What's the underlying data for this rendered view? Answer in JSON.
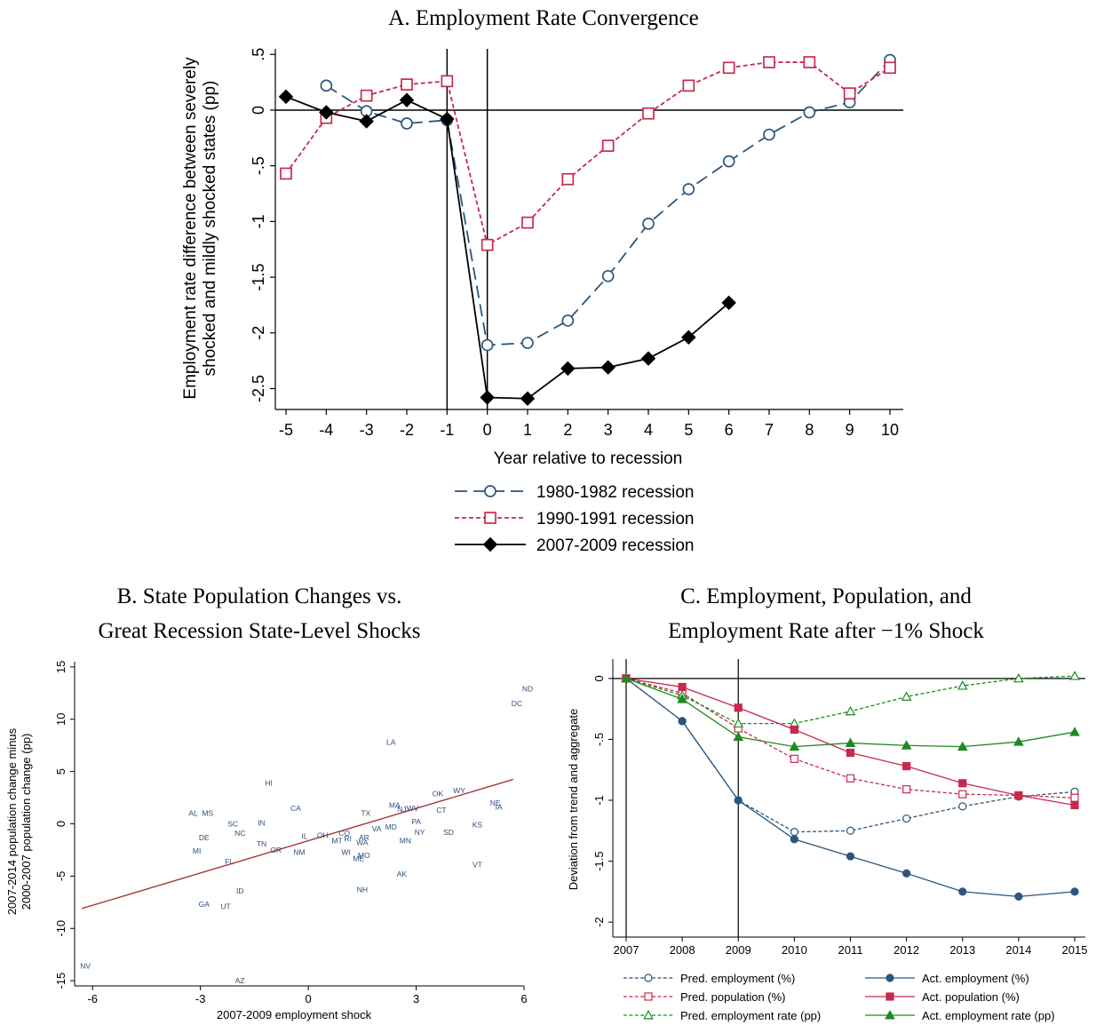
{
  "chart_data": [
    {
      "id": "A",
      "type": "line",
      "title": "A. Employment Rate Convergence",
      "xlabel": "Year relative to recession",
      "ylabel": "Employment rate difference between severely shocked and mildly shocked states (pp)",
      "ylabel_lines": [
        "Employment rate difference between severely",
        "shocked and mildly shocked states (pp)"
      ],
      "xlim": [
        -5,
        10
      ],
      "ylim": [
        -2.6,
        0.55
      ],
      "x_ticks": [
        -5,
        -4,
        -3,
        -2,
        -1,
        0,
        1,
        2,
        3,
        4,
        5,
        6,
        7,
        8,
        9,
        10
      ],
      "x_tick_labels": [
        "-5",
        "-4",
        "-3",
        "-2",
        "-1",
        "0",
        "1",
        "2",
        "3",
        "4",
        "5",
        "6",
        "7",
        "8",
        "9",
        "10"
      ],
      "y_ticks": [
        0.5,
        0,
        -0.5,
        -1,
        -1.5,
        -2,
        -2.5
      ],
      "y_tick_labels": [
        ".5",
        "0",
        "-.5",
        "-1",
        "-1.5",
        "-2",
        "-2.5"
      ],
      "reference_lines": {
        "y": [
          0
        ],
        "x": [
          -1,
          0
        ]
      },
      "legend_placement": "bottom",
      "series": [
        {
          "name": "1980-1982 recession",
          "color": "#2b567e",
          "marker": "hollow-circle",
          "dash": "long-dash",
          "x": [
            -4,
            -3,
            -2,
            -1,
            0,
            1,
            2,
            3,
            4,
            5,
            6,
            7,
            8,
            9,
            10
          ],
          "values": [
            0.22,
            -0.01,
            -0.12,
            -0.09,
            -2.11,
            -2.09,
            -1.89,
            -1.49,
            -1.02,
            -0.71,
            -0.46,
            -0.22,
            -0.02,
            0.07,
            0.45
          ]
        },
        {
          "name": "1990-1991 recession",
          "color": "#c8284e",
          "marker": "hollow-square",
          "dash": "short-dash",
          "x": [
            -5,
            -4,
            -3,
            -2,
            -1,
            0,
            1,
            2,
            3,
            4,
            5,
            6,
            7,
            8,
            9,
            10
          ],
          "values": [
            -0.57,
            -0.07,
            0.13,
            0.23,
            0.26,
            -1.21,
            -1.01,
            -0.62,
            -0.32,
            -0.03,
            0.22,
            0.38,
            0.43,
            0.43,
            0.15,
            0.38
          ]
        },
        {
          "name": "2007-2009 recession",
          "color": "#000000",
          "marker": "filled-diamond",
          "dash": "solid",
          "x": [
            -5,
            -4,
            -3,
            -2,
            -1,
            0,
            1,
            2,
            3,
            4,
            5,
            6
          ],
          "values": [
            0.12,
            -0.02,
            -0.1,
            0.09,
            -0.08,
            -2.58,
            -2.59,
            -2.32,
            -2.31,
            -2.23,
            -2.04,
            -1.73
          ]
        }
      ]
    },
    {
      "id": "B",
      "type": "scatter",
      "title_lines": [
        "B. State Population Changes vs.",
        "Great Recession State-Level Shocks"
      ],
      "xlabel": "2007-2009 employment shock",
      "ylabel_lines": [
        "2007-2014 population change minus",
        "2000-2007 population change (pp)"
      ],
      "xlim": [
        -6.5,
        6
      ],
      "ylim": [
        -15.5,
        15.5
      ],
      "x_ticks": [
        -6,
        -3,
        0,
        3,
        6
      ],
      "x_tick_labels": [
        "-6",
        "-3",
        "0",
        "3",
        "6"
      ],
      "y_ticks": [
        15,
        10,
        5,
        0,
        -5,
        -10,
        -15
      ],
      "y_tick_labels": [
        "15",
        "10",
        "5",
        "0",
        "-5",
        "-10",
        "-15"
      ],
      "marker_color": "#2d4f7a",
      "fit_line": {
        "color": "#a02a2a",
        "x": [
          -6.3,
          5.7
        ],
        "y": [
          -8.1,
          4.25
        ]
      },
      "points": [
        {
          "label": "ND",
          "x": 6.1,
          "y": 12.9
        },
        {
          "label": "DC",
          "x": 5.8,
          "y": 11.5
        },
        {
          "label": "LA",
          "x": 2.3,
          "y": 7.8
        },
        {
          "label": "HI",
          "x": -1.1,
          "y": 3.9
        },
        {
          "label": "CA",
          "x": -0.35,
          "y": 1.5
        },
        {
          "label": "OK",
          "x": 3.6,
          "y": 2.9
        },
        {
          "label": "WY",
          "x": 4.2,
          "y": 3.2
        },
        {
          "label": "MA",
          "x": 2.4,
          "y": 1.8
        },
        {
          "label": "NJ",
          "x": 2.6,
          "y": 1.4
        },
        {
          "label": "WV",
          "x": 2.9,
          "y": 1.5
        },
        {
          "label": "CT",
          "x": 3.7,
          "y": 1.3
        },
        {
          "label": "NE",
          "x": 5.2,
          "y": 2.0
        },
        {
          "label": "IA",
          "x": 5.3,
          "y": 1.6
        },
        {
          "label": "AL",
          "x": -3.2,
          "y": 1.0
        },
        {
          "label": "MS",
          "x": -2.8,
          "y": 1.0
        },
        {
          "label": "TX",
          "x": 1.6,
          "y": 1.0
        },
        {
          "label": "SC",
          "x": -2.1,
          "y": 0.0
        },
        {
          "label": "IN",
          "x": -1.3,
          "y": 0.1
        },
        {
          "label": "PA",
          "x": 3.0,
          "y": 0.2
        },
        {
          "label": "KS",
          "x": 4.7,
          "y": -0.1
        },
        {
          "label": "VA",
          "x": 1.9,
          "y": -0.45
        },
        {
          "label": "MD",
          "x": 2.3,
          "y": -0.3
        },
        {
          "label": "NC",
          "x": -1.9,
          "y": -0.9
        },
        {
          "label": "NY",
          "x": 3.1,
          "y": -0.8
        },
        {
          "label": "SD",
          "x": 3.9,
          "y": -0.8
        },
        {
          "label": "DE",
          "x": -2.9,
          "y": -1.3
        },
        {
          "label": "IL",
          "x": -0.1,
          "y": -1.2
        },
        {
          "label": "OH",
          "x": 0.4,
          "y": -1.1
        },
        {
          "label": "CO",
          "x": 1.0,
          "y": -0.9
        },
        {
          "label": "MT",
          "x": 0.8,
          "y": -1.6
        },
        {
          "label": "RI",
          "x": 1.1,
          "y": -1.4
        },
        {
          "label": "AR",
          "x": 1.55,
          "y": -1.3
        },
        {
          "label": "WA",
          "x": 1.5,
          "y": -1.8
        },
        {
          "label": "MN",
          "x": 2.7,
          "y": -1.6
        },
        {
          "label": "TN",
          "x": -1.3,
          "y": -1.9
        },
        {
          "label": "OR",
          "x": -0.9,
          "y": -2.5
        },
        {
          "label": "NM",
          "x": -0.25,
          "y": -2.7
        },
        {
          "label": "WI",
          "x": 1.05,
          "y": -2.7
        },
        {
          "label": "MI",
          "x": -3.1,
          "y": -2.6
        },
        {
          "label": "MO",
          "x": 1.55,
          "y": -3.0
        },
        {
          "label": "ME",
          "x": 1.4,
          "y": -3.3
        },
        {
          "label": "FL",
          "x": -2.2,
          "y": -3.6
        },
        {
          "label": "VT",
          "x": 4.7,
          "y": -3.9
        },
        {
          "label": "AK",
          "x": 2.6,
          "y": -4.8
        },
        {
          "label": "ID",
          "x": -1.9,
          "y": -6.4
        },
        {
          "label": "NH",
          "x": 1.5,
          "y": -6.3
        },
        {
          "label": "GA",
          "x": -2.9,
          "y": -7.7
        },
        {
          "label": "UT",
          "x": -2.3,
          "y": -7.9
        },
        {
          "label": "NV",
          "x": -6.2,
          "y": -13.6
        },
        {
          "label": "AZ",
          "x": -1.9,
          "y": -15.0
        }
      ]
    },
    {
      "id": "C",
      "type": "line",
      "title_lines": [
        "C. Employment, Population, and",
        "Employment Rate after −1% Shock"
      ],
      "xlabel": "",
      "ylabel": "Deviation from trend and aggregate",
      "xlim": [
        2007,
        2015
      ],
      "ylim": [
        -2.05,
        0.05
      ],
      "x_ticks": [
        2007,
        2008,
        2009,
        2010,
        2011,
        2012,
        2013,
        2014,
        2015
      ],
      "x_tick_labels": [
        "2007",
        "2008",
        "2009",
        "2010",
        "2011",
        "2012",
        "2013",
        "2014",
        "2015"
      ],
      "y_ticks": [
        0,
        -0.5,
        -1,
        -1.5,
        -2
      ],
      "y_tick_labels": [
        "0",
        "-.5",
        "-1",
        "-1.5",
        "-2"
      ],
      "reference_lines": {
        "y": [
          0
        ],
        "x": [
          2007,
          2009
        ]
      },
      "legend_placement": "bottom",
      "series": [
        {
          "name": "Pred. employment (%)",
          "color": "#2b567e",
          "marker": "hollow-circle",
          "dash": "short-dash",
          "x": [
            2007,
            2008,
            2009,
            2010,
            2011,
            2012,
            2013,
            2014,
            2015
          ],
          "values": [
            0,
            -0.35,
            -1.0,
            -1.26,
            -1.25,
            -1.15,
            -1.05,
            -0.97,
            -0.93
          ]
        },
        {
          "name": "Pred. population (%)",
          "color": "#c8284e",
          "marker": "hollow-square",
          "dash": "short-dash",
          "x": [
            2007,
            2008,
            2009,
            2010,
            2011,
            2012,
            2013,
            2014,
            2015
          ],
          "values": [
            0,
            -0.12,
            -0.41,
            -0.66,
            -0.82,
            -0.91,
            -0.95,
            -0.96,
            -0.98
          ]
        },
        {
          "name": "Pred. employment rate (pp)",
          "color": "#1e8a1e",
          "marker": "hollow-triangle",
          "dash": "short-dash",
          "x": [
            2007,
            2008,
            2009,
            2010,
            2011,
            2012,
            2013,
            2014,
            2015
          ],
          "values": [
            0,
            -0.14,
            -0.37,
            -0.37,
            -0.27,
            -0.15,
            -0.06,
            0.0,
            0.02
          ]
        },
        {
          "name": "Act. employment (%)",
          "color": "#2b567e",
          "marker": "filled-circle",
          "dash": "solid",
          "x": [
            2007,
            2008,
            2009,
            2010,
            2011,
            2012,
            2013,
            2014,
            2015
          ],
          "values": [
            0,
            -0.35,
            -1.0,
            -1.32,
            -1.46,
            -1.6,
            -1.75,
            -1.79,
            -1.75
          ]
        },
        {
          "name": "Act. population (%)",
          "color": "#c8284e",
          "marker": "filled-square",
          "dash": "solid",
          "x": [
            2007,
            2008,
            2009,
            2010,
            2011,
            2012,
            2013,
            2014,
            2015
          ],
          "values": [
            0,
            -0.07,
            -0.24,
            -0.42,
            -0.61,
            -0.72,
            -0.86,
            -0.96,
            -1.04
          ]
        },
        {
          "name": "Act. employment rate (pp)",
          "color": "#1e8a1e",
          "marker": "filled-triangle",
          "dash": "solid",
          "x": [
            2007,
            2008,
            2009,
            2010,
            2011,
            2012,
            2013,
            2014,
            2015
          ],
          "values": [
            0,
            -0.17,
            -0.48,
            -0.56,
            -0.53,
            -0.55,
            -0.56,
            -0.52,
            -0.44
          ]
        }
      ]
    }
  ]
}
